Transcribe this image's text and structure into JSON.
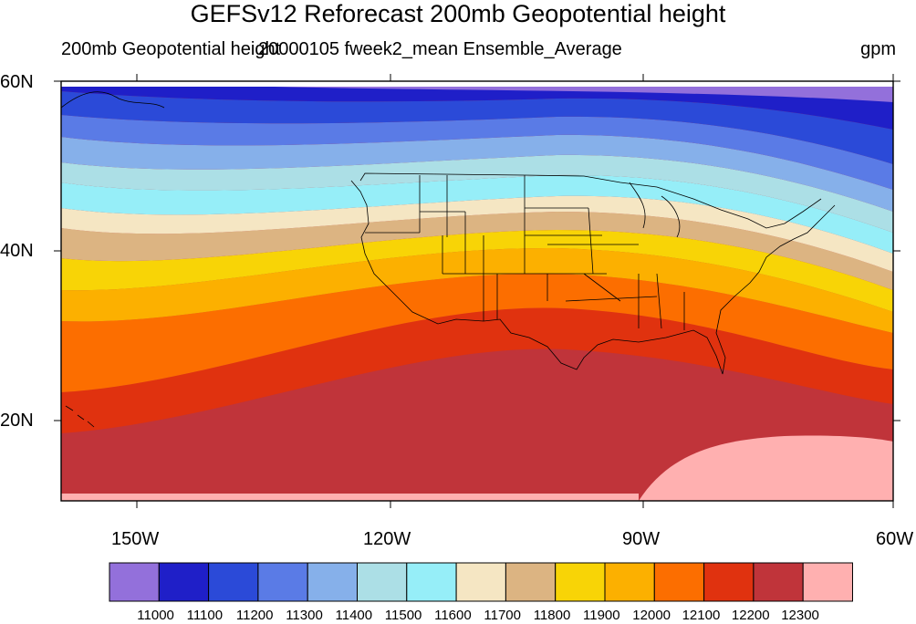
{
  "header": {
    "title": "GEFSv12 Reforecast 200mb Geopotential height",
    "left_label": "200mb Geopotential height",
    "center_label": "20000105 fweek2_mean Ensemble_Average",
    "right_label": "gpm"
  },
  "axes": {
    "lat_ticks": [
      "60N",
      "40N",
      "20N"
    ],
    "lon_ticks": [
      "150W",
      "120W",
      "90W",
      "60W"
    ]
  },
  "colorbar": {
    "labels": [
      "11000",
      "11100",
      "11200",
      "11300",
      "11400",
      "11500",
      "11600",
      "11700",
      "11800",
      "11900",
      "12000",
      "12100",
      "12200",
      "12300"
    ],
    "colors": [
      "#9370db",
      "#1f1fc8",
      "#2b4ad8",
      "#5a7be6",
      "#86b0ea",
      "#acdfe6",
      "#96eef8",
      "#f5e6c3",
      "#dcb482",
      "#f8d406",
      "#fcb000",
      "#fc6e00",
      "#e0320f",
      "#c0343a",
      "#ffb0b0"
    ]
  }
}
